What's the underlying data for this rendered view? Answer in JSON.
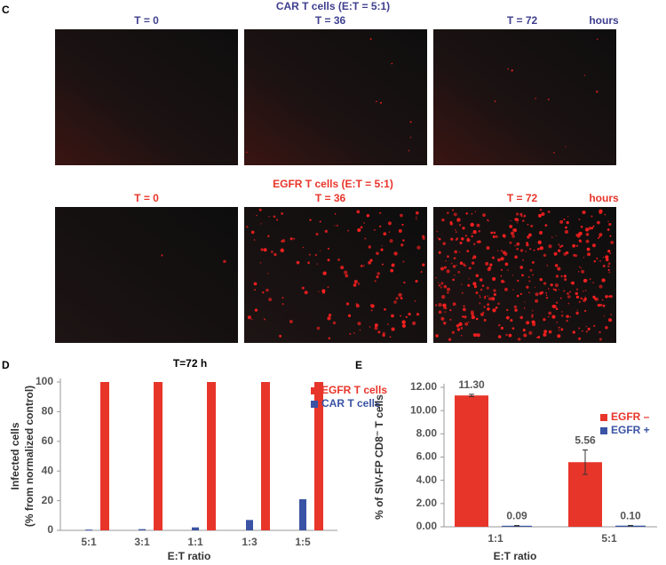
{
  "panel_c": {
    "label": "C",
    "rows": [
      {
        "title": "CAR T cells (E:T = 5:1)",
        "times": [
          "T = 0",
          "T = 36",
          "T = 72"
        ],
        "unit": "hours",
        "color": "#3f3f8f"
      },
      {
        "title": "EGFR T cells (E:T = 5:1)",
        "times": [
          "T = 0",
          "T = 36",
          "T = 72"
        ],
        "unit": "hours",
        "color": "#e8352a"
      }
    ]
  },
  "chart_data": [
    {
      "panel": "D",
      "type": "bar",
      "title": "T=72 h",
      "categories": [
        "5:1",
        "3:1",
        "1:1",
        "1:3",
        "1:5"
      ],
      "series": [
        {
          "name": "EGFR T cells",
          "color": "#e8352a",
          "values": [
            100,
            100,
            100,
            100,
            100
          ]
        },
        {
          "name": "CAR T cells",
          "color": "#3a53a4",
          "values": [
            0.5,
            0.8,
            2,
            7,
            21
          ]
        }
      ],
      "ylim": [
        0,
        100
      ],
      "yticks": [
        0,
        20,
        40,
        60,
        80,
        100
      ],
      "xlabel": "E:T ratio",
      "ylabel": [
        "Infected cells",
        "(% from normalized control)"
      ]
    },
    {
      "panel": "E",
      "type": "bar",
      "categories": [
        "1:1",
        "5:1"
      ],
      "series": [
        {
          "name": "EGFR –",
          "color": "#e8352a",
          "values": [
            11.3,
            5.56
          ],
          "value_labels": [
            "11.30",
            "5.56"
          ],
          "errors": [
            0.1,
            1.05
          ]
        },
        {
          "name": "EGFR +",
          "color": "#3a53a4",
          "values": [
            0.09,
            0.1
          ],
          "value_labels": [
            "0.09",
            "0.10"
          ],
          "errors": [
            0.02,
            0.02
          ]
        }
      ],
      "ylim": [
        0,
        12
      ],
      "yticks": [
        {
          "value": 0,
          "label": "0.00"
        },
        {
          "value": 2,
          "label": "2.00"
        },
        {
          "value": 4,
          "label": "4.00"
        },
        {
          "value": 6,
          "label": "6.00"
        },
        {
          "value": 8,
          "label": "8.00"
        },
        {
          "value": 10,
          "label": "10.00"
        },
        {
          "value": 12,
          "label": "12.00"
        }
      ],
      "xlabel": "E:T  ratio",
      "ylabel": "% of SIV-FP CD8⁻ T cells"
    }
  ]
}
